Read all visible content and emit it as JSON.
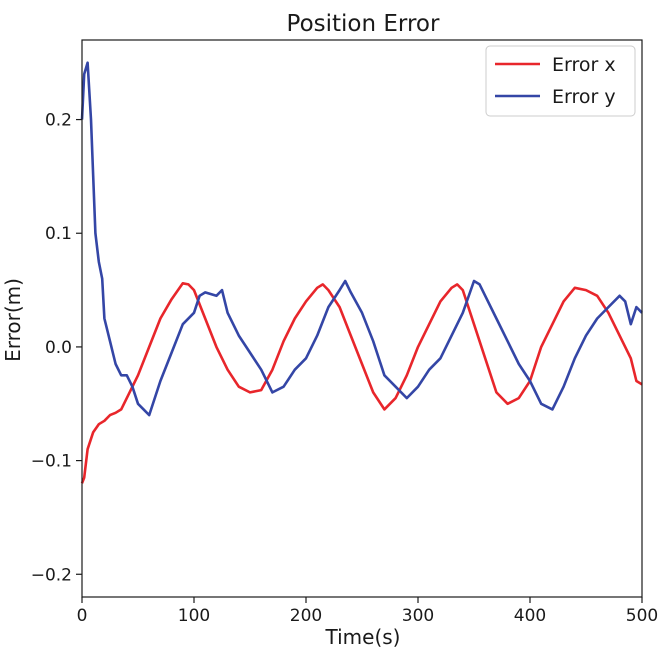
{
  "chart_data": {
    "type": "line",
    "title": "Position Error",
    "xlabel": "Time(s)",
    "ylabel": "Error(m)",
    "xlim": [
      0,
      500
    ],
    "ylim": [
      -0.22,
      0.27
    ],
    "xticks": [
      0,
      100,
      200,
      300,
      400,
      500
    ],
    "xtick_labels": [
      "0",
      "100",
      "200",
      "300",
      "400",
      "500"
    ],
    "yticks": [
      -0.2,
      -0.1,
      0.0,
      0.1,
      0.2
    ],
    "ytick_labels": [
      "−0.2",
      "−0.1",
      "0.0",
      "0.1",
      "0.2"
    ],
    "grid": false,
    "legend_position": "top-right",
    "series": [
      {
        "name": "Error x",
        "color": "#e8262b",
        "x": [
          0,
          2,
          5,
          10,
          15,
          20,
          25,
          30,
          35,
          40,
          50,
          60,
          70,
          80,
          90,
          95,
          100,
          110,
          120,
          130,
          140,
          150,
          160,
          170,
          180,
          190,
          200,
          210,
          215,
          220,
          230,
          240,
          250,
          260,
          270,
          280,
          290,
          300,
          310,
          320,
          330,
          335,
          340,
          350,
          360,
          370,
          380,
          390,
          400,
          410,
          420,
          430,
          440,
          450,
          460,
          470,
          480,
          490,
          495,
          500
        ],
        "y": [
          -0.12,
          -0.115,
          -0.09,
          -0.075,
          -0.068,
          -0.065,
          -0.06,
          -0.058,
          -0.055,
          -0.045,
          -0.025,
          0.0,
          0.025,
          0.042,
          0.056,
          0.055,
          0.05,
          0.025,
          0.0,
          -0.02,
          -0.035,
          -0.04,
          -0.038,
          -0.02,
          0.005,
          0.025,
          0.04,
          0.052,
          0.055,
          0.05,
          0.035,
          0.01,
          -0.015,
          -0.04,
          -0.055,
          -0.045,
          -0.025,
          0.0,
          0.02,
          0.04,
          0.052,
          0.055,
          0.05,
          0.02,
          -0.01,
          -0.04,
          -0.05,
          -0.045,
          -0.03,
          0.0,
          0.02,
          0.04,
          0.052,
          0.05,
          0.045,
          0.03,
          0.01,
          -0.01,
          -0.03,
          -0.033
        ]
      },
      {
        "name": "Error y",
        "color": "#3446a6",
        "x": [
          0,
          2,
          5,
          8,
          10,
          12,
          15,
          18,
          20,
          25,
          30,
          35,
          40,
          45,
          50,
          55,
          60,
          70,
          80,
          90,
          100,
          105,
          110,
          120,
          125,
          130,
          140,
          150,
          160,
          170,
          180,
          190,
          200,
          210,
          220,
          230,
          235,
          240,
          250,
          260,
          270,
          280,
          290,
          300,
          310,
          320,
          330,
          340,
          350,
          355,
          360,
          370,
          380,
          390,
          400,
          410,
          420,
          430,
          440,
          450,
          460,
          470,
          480,
          485,
          490,
          495,
          500
        ],
        "y": [
          0.2,
          0.24,
          0.25,
          0.2,
          0.15,
          0.1,
          0.075,
          0.06,
          0.025,
          0.005,
          -0.015,
          -0.025,
          -0.025,
          -0.035,
          -0.05,
          -0.055,
          -0.06,
          -0.03,
          -0.005,
          0.02,
          0.03,
          0.045,
          0.048,
          0.045,
          0.05,
          0.03,
          0.01,
          -0.005,
          -0.02,
          -0.04,
          -0.035,
          -0.02,
          -0.01,
          0.01,
          0.035,
          0.05,
          0.058,
          0.048,
          0.03,
          0.005,
          -0.025,
          -0.035,
          -0.045,
          -0.035,
          -0.02,
          -0.01,
          0.01,
          0.03,
          0.058,
          0.055,
          0.045,
          0.025,
          0.005,
          -0.015,
          -0.03,
          -0.05,
          -0.055,
          -0.035,
          -0.01,
          0.01,
          0.025,
          0.035,
          0.045,
          0.04,
          0.02,
          0.035,
          0.03
        ]
      }
    ]
  }
}
